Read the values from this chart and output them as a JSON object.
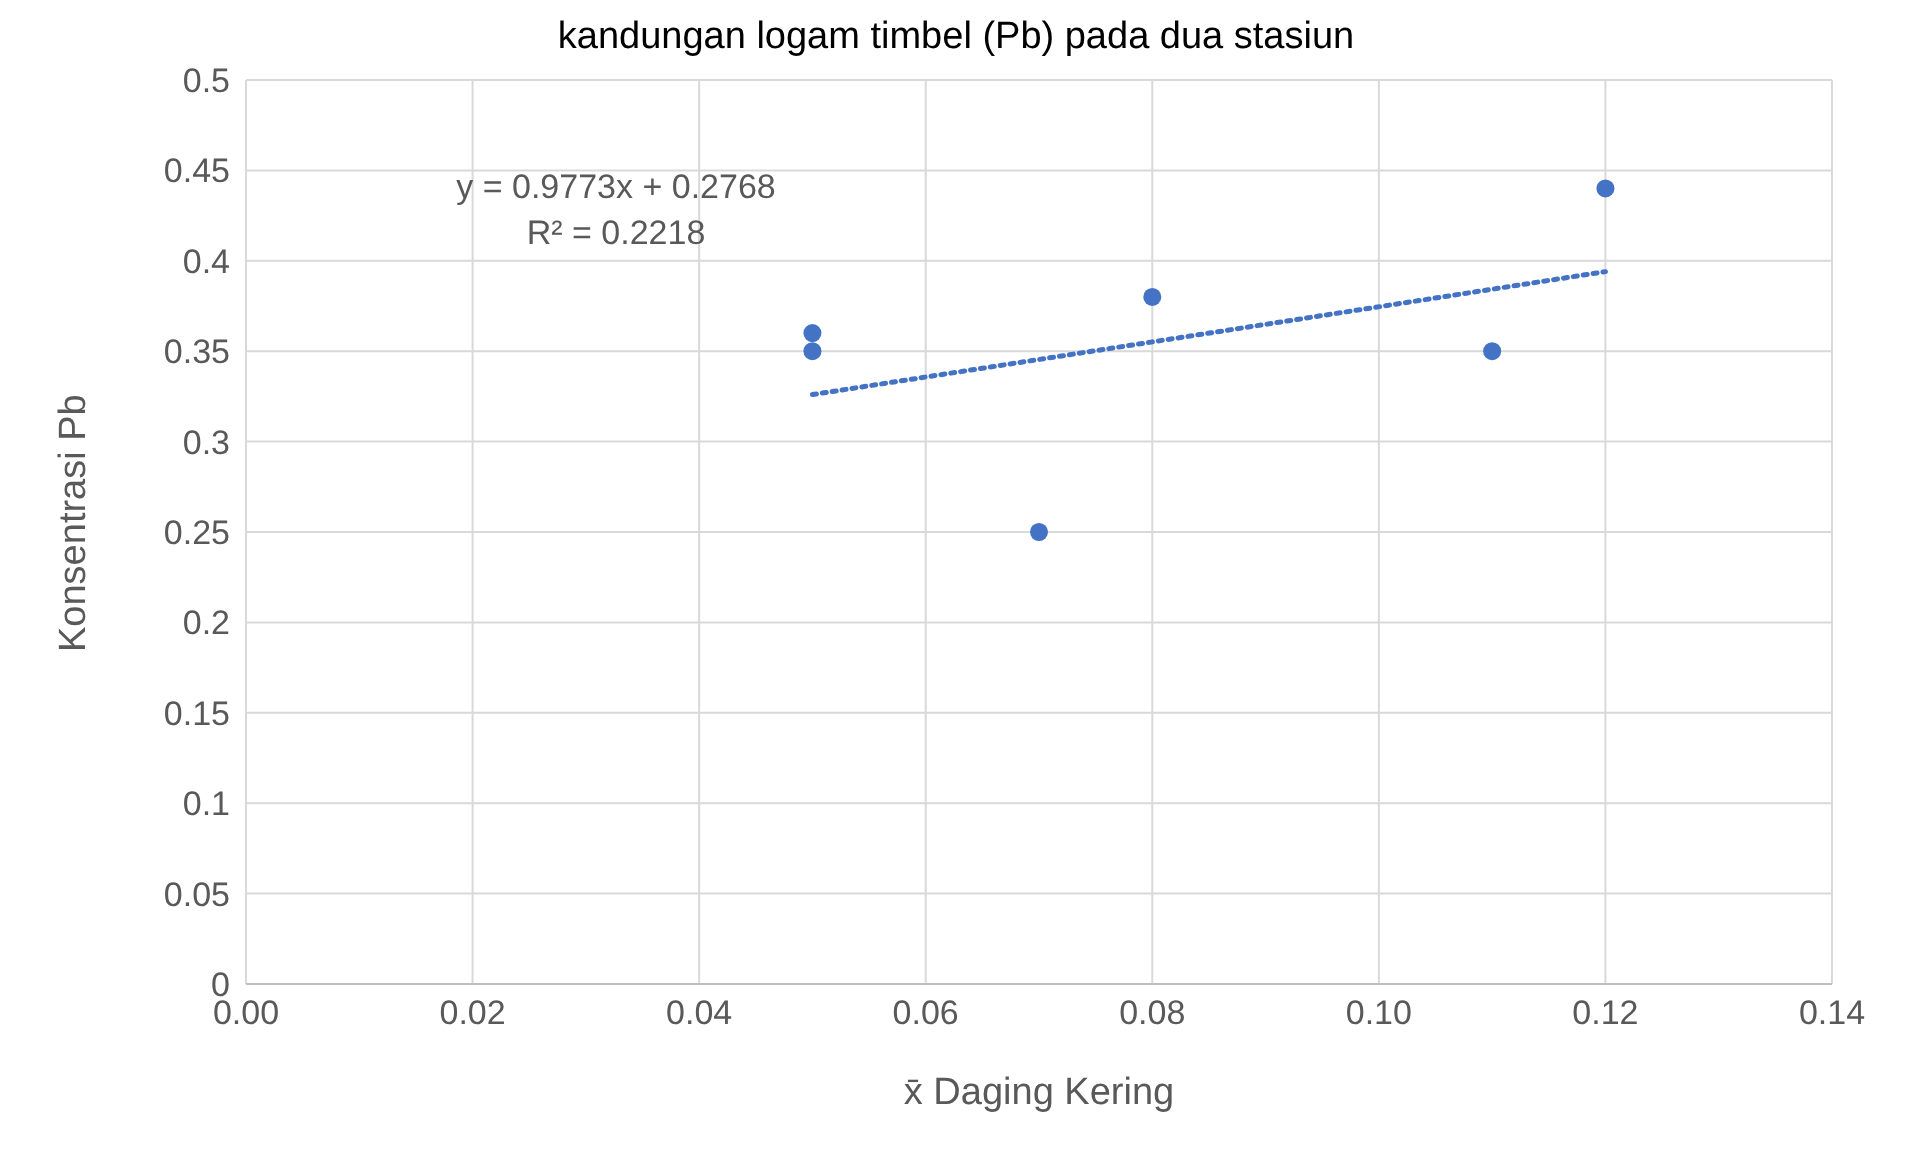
{
  "chart_data": {
    "type": "scatter",
    "title": "kandungan logam timbel (Pb) pada dua stasiun",
    "xlabel": "x̄ Daging Kering",
    "ylabel": "Konsentrasi Pb",
    "annotations": [
      "y = 0.9773x + 0.2768",
      "R² = 0.2218"
    ],
    "series": [
      {
        "color": "#4472c4",
        "x": [
          0.05,
          0.05,
          0.07,
          0.08,
          0.11,
          0.12
        ],
        "values": [
          0.36,
          0.35,
          0.25,
          0.38,
          0.35,
          0.44
        ],
        "marker": "circle"
      },
      {
        "type": "line",
        "color": "#4472c4",
        "x": [
          0.05,
          0.12
        ],
        "values": [
          0.326,
          0.394
        ],
        "line_style": "dotted",
        "marker": "none"
      }
    ],
    "xlim": [
      0,
      0.14
    ],
    "xticks": [
      {
        "value": 0,
        "label": "0.00"
      },
      {
        "value": 0.02,
        "label": "0.02"
      },
      {
        "value": 0.04,
        "label": "0.04"
      },
      {
        "value": 0.06,
        "label": "0.06"
      },
      {
        "value": 0.08,
        "label": "0.08"
      },
      {
        "value": 0.1,
        "label": "0.10"
      },
      {
        "value": 0.12,
        "label": "0.12"
      },
      {
        "value": 0.14,
        "label": "0.14"
      }
    ],
    "ylim": [
      0,
      0.5
    ],
    "yticks": [
      0,
      0.05,
      0.1,
      0.15,
      0.2,
      0.25,
      0.3,
      0.35,
      0.4,
      0.45,
      0.5
    ],
    "grid": true,
    "legend": false
  }
}
